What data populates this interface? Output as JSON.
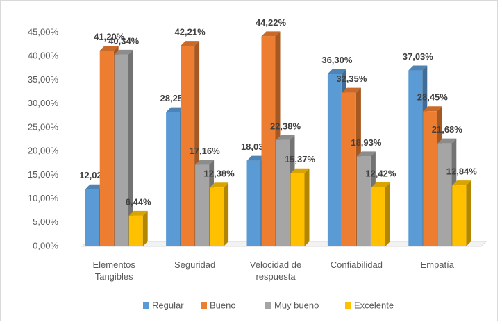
{
  "chart_data": {
    "type": "bar3d",
    "categories": [
      "Elementos Tangibles",
      "Seguridad",
      "Velocidad de respuesta",
      "Confiabilidad",
      "Empatía"
    ],
    "series": [
      {
        "name": "Regular",
        "color": "#5b9bd5",
        "values": [
          12.02,
          28.25,
          18.03,
          36.3,
          37.03
        ],
        "value_labels": [
          "12,02%",
          "28,25%",
          "18,03%",
          "36,30%",
          "37,03%"
        ]
      },
      {
        "name": "Bueno",
        "color": "#ed7d31",
        "values": [
          41.2,
          42.21,
          44.22,
          32.35,
          28.45
        ],
        "value_labels": [
          "41,20%",
          "42,21%",
          "44,22%",
          "32,35%",
          "28,45%"
        ]
      },
      {
        "name": "Muy bueno",
        "color": "#a5a5a5",
        "values": [
          40.34,
          17.16,
          22.38,
          18.93,
          21.68
        ],
        "value_labels": [
          "40,34%",
          "17,16%",
          "22,38%",
          "18,93%",
          "21,68%"
        ]
      },
      {
        "name": "Excelente",
        "color": "#ffc000",
        "values": [
          6.44,
          12.38,
          15.37,
          12.42,
          12.84
        ],
        "value_labels": [
          "6,44%",
          "12,38%",
          "15,37%",
          "12,42%",
          "12,84%"
        ]
      }
    ],
    "ylim": [
      0,
      45
    ],
    "yticks": [
      {
        "value": 0,
        "label": "0,00%"
      },
      {
        "value": 5,
        "label": "5,00%"
      },
      {
        "value": 10,
        "label": "10,00%"
      },
      {
        "value": 15,
        "label": "15,00%"
      },
      {
        "value": 20,
        "label": "20,00%"
      },
      {
        "value": 25,
        "label": "25,00%"
      },
      {
        "value": 30,
        "label": "30,00%"
      },
      {
        "value": 35,
        "label": "35,00%"
      },
      {
        "value": 40,
        "label": "40,00%"
      },
      {
        "value": 45,
        "label": "45,00%"
      }
    ],
    "grid": false,
    "legend": "bottom"
  }
}
